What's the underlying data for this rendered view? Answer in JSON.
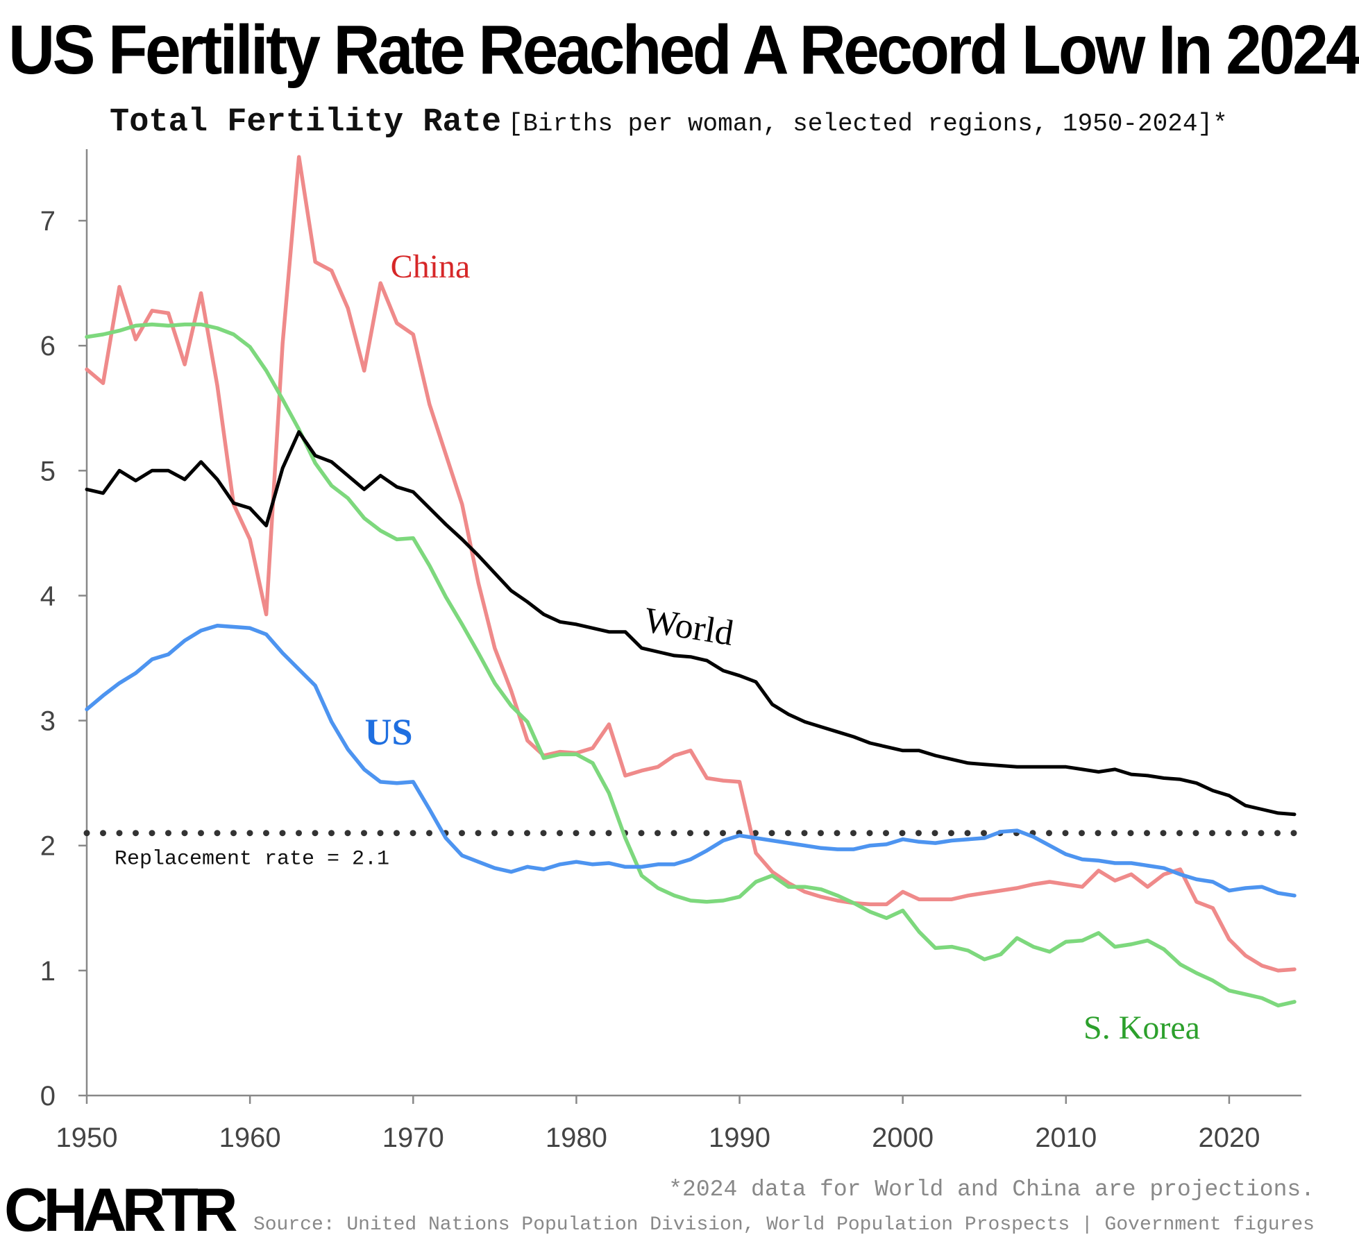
{
  "header": {
    "title": "US Fertility Rate Reached A Record Low In 2024",
    "subtitle_bold": "Total Fertility Rate",
    "subtitle_light": "[Births per woman, selected regions, 1950-2024]*"
  },
  "footer": {
    "logo": "CHARTR",
    "note": "*2024 data for World and China are projections.",
    "source": "Source: United Nations Population Division, World Population Prospects | Government figures"
  },
  "chart_data": {
    "type": "line",
    "title": "",
    "xlabel": "",
    "ylabel": "",
    "xlim": [
      1950,
      2024
    ],
    "ylim": [
      0,
      7.6
    ],
    "x_ticks": [
      1950,
      1960,
      1970,
      1980,
      1990,
      2000,
      2010,
      2020
    ],
    "y_ticks": [
      0,
      1,
      2,
      3,
      4,
      5,
      6,
      7
    ],
    "grid": false,
    "legend": "none (series labeled inline)",
    "reference_line": {
      "value": 2.1,
      "label": "Replacement rate = 2.1",
      "style": "dotted",
      "color": "#333333"
    },
    "series": [
      {
        "name": "China",
        "color": "#ef8a8a",
        "label_color": "#d62728",
        "x": [
          1950,
          1951,
          1952,
          1953,
          1954,
          1955,
          1956,
          1957,
          1958,
          1959,
          1960,
          1961,
          1962,
          1963,
          1964,
          1965,
          1966,
          1967,
          1968,
          1969,
          1970,
          1971,
          1972,
          1973,
          1974,
          1975,
          1976,
          1977,
          1978,
          1979,
          1980,
          1981,
          1982,
          1983,
          1984,
          1985,
          1986,
          1987,
          1988,
          1989,
          1990,
          1991,
          1992,
          1993,
          1994,
          1995,
          1996,
          1997,
          1998,
          1999,
          2000,
          2001,
          2002,
          2003,
          2004,
          2005,
          2006,
          2007,
          2008,
          2009,
          2010,
          2011,
          2012,
          2013,
          2014,
          2015,
          2016,
          2017,
          2018,
          2019,
          2020,
          2021,
          2022,
          2023,
          2024
        ],
        "values": [
          5.81,
          5.7,
          6.47,
          6.05,
          6.28,
          6.26,
          5.85,
          6.42,
          5.68,
          4.73,
          4.45,
          3.85,
          6.02,
          7.51,
          6.67,
          6.6,
          6.3,
          5.8,
          6.5,
          6.18,
          6.09,
          5.53,
          5.13,
          4.73,
          4.1,
          3.58,
          3.24,
          2.84,
          2.72,
          2.75,
          2.74,
          2.78,
          2.97,
          2.56,
          2.6,
          2.63,
          2.72,
          2.76,
          2.54,
          2.52,
          2.51,
          1.94,
          1.79,
          1.7,
          1.63,
          1.59,
          1.56,
          1.54,
          1.53,
          1.53,
          1.63,
          1.57,
          1.57,
          1.57,
          1.6,
          1.62,
          1.64,
          1.66,
          1.69,
          1.71,
          1.69,
          1.67,
          1.8,
          1.72,
          1.77,
          1.67,
          1.77,
          1.81,
          1.55,
          1.5,
          1.25,
          1.12,
          1.04,
          1.0,
          1.01
        ]
      },
      {
        "name": "S. Korea",
        "color": "#7dd87d",
        "label_color": "#2ca02c",
        "x": [
          1950,
          1951,
          1952,
          1953,
          1954,
          1955,
          1956,
          1957,
          1958,
          1959,
          1960,
          1961,
          1962,
          1963,
          1964,
          1965,
          1966,
          1967,
          1968,
          1969,
          1970,
          1971,
          1972,
          1973,
          1974,
          1975,
          1976,
          1977,
          1978,
          1979,
          1980,
          1981,
          1982,
          1983,
          1984,
          1985,
          1986,
          1987,
          1988,
          1989,
          1990,
          1991,
          1992,
          1993,
          1994,
          1995,
          1996,
          1997,
          1998,
          1999,
          2000,
          2001,
          2002,
          2003,
          2004,
          2005,
          2006,
          2007,
          2008,
          2009,
          2010,
          2011,
          2012,
          2013,
          2014,
          2015,
          2016,
          2017,
          2018,
          2019,
          2020,
          2021,
          2022,
          2023,
          2024
        ],
        "values": [
          6.07,
          6.09,
          6.12,
          6.16,
          6.17,
          6.16,
          6.17,
          6.17,
          6.14,
          6.09,
          5.99,
          5.8,
          5.57,
          5.33,
          5.06,
          4.88,
          4.78,
          4.62,
          4.52,
          4.45,
          4.46,
          4.24,
          3.99,
          3.77,
          3.54,
          3.3,
          3.12,
          2.99,
          2.7,
          2.73,
          2.73,
          2.66,
          2.42,
          2.06,
          1.76,
          1.66,
          1.6,
          1.56,
          1.55,
          1.56,
          1.59,
          1.71,
          1.76,
          1.67,
          1.67,
          1.65,
          1.6,
          1.54,
          1.47,
          1.42,
          1.48,
          1.31,
          1.18,
          1.19,
          1.16,
          1.09,
          1.13,
          1.26,
          1.19,
          1.15,
          1.23,
          1.24,
          1.3,
          1.19,
          1.21,
          1.24,
          1.17,
          1.05,
          0.98,
          0.92,
          0.84,
          0.81,
          0.78,
          0.72,
          0.75
        ]
      },
      {
        "name": "World",
        "color": "#000000",
        "label_color": "#000000",
        "x": [
          1950,
          1951,
          1952,
          1953,
          1954,
          1955,
          1956,
          1957,
          1958,
          1959,
          1960,
          1961,
          1962,
          1963,
          1964,
          1965,
          1966,
          1967,
          1968,
          1969,
          1970,
          1971,
          1972,
          1973,
          1974,
          1975,
          1976,
          1977,
          1978,
          1979,
          1980,
          1981,
          1982,
          1983,
          1984,
          1985,
          1986,
          1987,
          1988,
          1989,
          1990,
          1991,
          1992,
          1993,
          1994,
          1995,
          1996,
          1997,
          1998,
          1999,
          2000,
          2001,
          2002,
          2003,
          2004,
          2005,
          2006,
          2007,
          2008,
          2009,
          2010,
          2011,
          2012,
          2013,
          2014,
          2015,
          2016,
          2017,
          2018,
          2019,
          2020,
          2021,
          2022,
          2023,
          2024
        ],
        "values": [
          4.85,
          4.82,
          5.0,
          4.92,
          5.0,
          5.0,
          4.93,
          5.07,
          4.93,
          4.74,
          4.7,
          4.56,
          5.02,
          5.31,
          5.12,
          5.07,
          4.96,
          4.85,
          4.96,
          4.87,
          4.83,
          4.7,
          4.57,
          4.45,
          4.32,
          4.18,
          4.04,
          3.95,
          3.85,
          3.79,
          3.77,
          3.74,
          3.71,
          3.71,
          3.58,
          3.55,
          3.52,
          3.51,
          3.48,
          3.4,
          3.36,
          3.31,
          3.13,
          3.05,
          2.99,
          2.95,
          2.91,
          2.87,
          2.82,
          2.79,
          2.76,
          2.76,
          2.72,
          2.69,
          2.66,
          2.65,
          2.64,
          2.63,
          2.63,
          2.63,
          2.63,
          2.61,
          2.59,
          2.61,
          2.57,
          2.56,
          2.54,
          2.53,
          2.5,
          2.44,
          2.4,
          2.32,
          2.29,
          2.26,
          2.25
        ]
      },
      {
        "name": "US",
        "color": "#4d94f0",
        "label_color": "#1f6fe0",
        "x": [
          1950,
          1951,
          1952,
          1953,
          1954,
          1955,
          1956,
          1957,
          1958,
          1959,
          1960,
          1961,
          1962,
          1963,
          1964,
          1965,
          1966,
          1967,
          1968,
          1969,
          1970,
          1971,
          1972,
          1973,
          1974,
          1975,
          1976,
          1977,
          1978,
          1979,
          1980,
          1981,
          1982,
          1983,
          1984,
          1985,
          1986,
          1987,
          1988,
          1989,
          1990,
          1991,
          1992,
          1993,
          1994,
          1995,
          1996,
          1997,
          1998,
          1999,
          2000,
          2001,
          2002,
          2003,
          2004,
          2005,
          2006,
          2007,
          2008,
          2009,
          2010,
          2011,
          2012,
          2013,
          2014,
          2015,
          2016,
          2017,
          2018,
          2019,
          2020,
          2021,
          2022,
          2023,
          2024
        ],
        "values": [
          3.09,
          3.2,
          3.3,
          3.38,
          3.49,
          3.53,
          3.64,
          3.72,
          3.76,
          3.75,
          3.74,
          3.69,
          3.54,
          3.41,
          3.28,
          2.99,
          2.77,
          2.61,
          2.51,
          2.5,
          2.51,
          2.29,
          2.06,
          1.92,
          1.87,
          1.82,
          1.79,
          1.83,
          1.81,
          1.85,
          1.87,
          1.85,
          1.86,
          1.83,
          1.83,
          1.85,
          1.85,
          1.89,
          1.96,
          2.04,
          2.08,
          2.06,
          2.04,
          2.02,
          2.0,
          1.98,
          1.97,
          1.97,
          2.0,
          2.01,
          2.05,
          2.03,
          2.02,
          2.04,
          2.05,
          2.06,
          2.11,
          2.12,
          2.07,
          2.0,
          1.93,
          1.89,
          1.88,
          1.86,
          1.86,
          1.84,
          1.82,
          1.77,
          1.73,
          1.71,
          1.64,
          1.66,
          1.67,
          1.62,
          1.6
        ]
      }
    ],
    "annotations": [
      {
        "text": "China",
        "series": "China"
      },
      {
        "text": "World",
        "series": "World"
      },
      {
        "text": "US",
        "series": "US"
      },
      {
        "text": "S. Korea",
        "series": "S. Korea"
      }
    ]
  }
}
